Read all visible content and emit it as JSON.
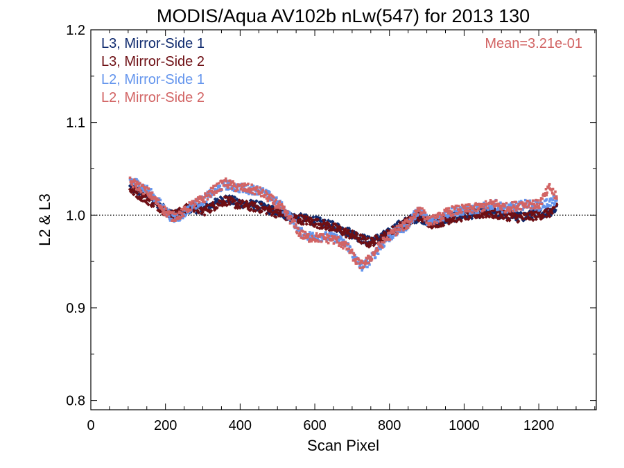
{
  "chart_data": {
    "type": "scatter",
    "title": "MODIS/Aqua AV102b nLw(547) for 2013 130",
    "xlabel": "Scan Pixel",
    "ylabel": "L2 & L3",
    "xlim": [
      0,
      1354
    ],
    "ylim": [
      0.79,
      1.2
    ],
    "x_ticks": [
      0,
      200,
      400,
      600,
      800,
      1000,
      1200
    ],
    "x_tick_labels": [
      "0",
      "200",
      "400",
      "600",
      "800",
      "1000",
      "1200"
    ],
    "y_ticks": [
      0.8,
      0.9,
      1.0,
      1.1,
      1.2
    ],
    "y_tick_labels": [
      "0.8",
      "0.9",
      "1.0",
      "1.1",
      "1.2"
    ],
    "reference_line": {
      "y": 1.0,
      "style": "dotted"
    },
    "annotation": {
      "text": "Mean=3.21e-01",
      "color": "#d26464",
      "placement": "top-right"
    },
    "legend_placement": "top-left",
    "grid": false,
    "series": [
      {
        "name": "L3, Mirror-Side 1",
        "color": "#0f2a6e",
        "marker": "diamond",
        "points": [
          [
            105,
            1.03
          ],
          [
            130,
            1.025
          ],
          [
            155,
            1.02
          ],
          [
            180,
            1.012
          ],
          [
            200,
            1.005
          ],
          [
            220,
            1.0
          ],
          [
            245,
            1.002
          ],
          [
            270,
            1.008
          ],
          [
            300,
            1.006
          ],
          [
            330,
            1.012
          ],
          [
            360,
            1.018
          ],
          [
            390,
            1.014
          ],
          [
            420,
            1.012
          ],
          [
            450,
            1.01
          ],
          [
            480,
            1.006
          ],
          [
            510,
            1.002
          ],
          [
            540,
            0.998
          ],
          [
            570,
            0.996
          ],
          [
            600,
            0.994
          ],
          [
            630,
            0.99
          ],
          [
            660,
            0.987
          ],
          [
            690,
            0.982
          ],
          [
            720,
            0.976
          ],
          [
            745,
            0.972
          ],
          [
            770,
            0.975
          ],
          [
            795,
            0.98
          ],
          [
            820,
            0.988
          ],
          [
            850,
            0.994
          ],
          [
            880,
            0.998
          ],
          [
            910,
            0.992
          ],
          [
            940,
            0.995
          ],
          [
            970,
            0.998
          ],
          [
            1000,
            1.0
          ],
          [
            1030,
            1.002
          ],
          [
            1060,
            1.003
          ],
          [
            1090,
            1.002
          ],
          [
            1120,
            1.0
          ],
          [
            1150,
            0.998
          ],
          [
            1180,
            1.0
          ],
          [
            1210,
            1.002
          ],
          [
            1240,
            1.005
          ],
          [
            1248,
            1.01
          ]
        ]
      },
      {
        "name": "L3, Mirror-Side 2",
        "color": "#6e0f14",
        "marker": "diamond",
        "points": [
          [
            105,
            1.028
          ],
          [
            130,
            1.022
          ],
          [
            155,
            1.016
          ],
          [
            180,
            1.01
          ],
          [
            200,
            1.004
          ],
          [
            220,
            1.0
          ],
          [
            245,
            1.004
          ],
          [
            270,
            1.01
          ],
          [
            300,
            1.004
          ],
          [
            330,
            1.01
          ],
          [
            360,
            1.016
          ],
          [
            390,
            1.012
          ],
          [
            420,
            1.01
          ],
          [
            450,
            1.008
          ],
          [
            480,
            1.005
          ],
          [
            510,
            1.001
          ],
          [
            540,
            0.997
          ],
          [
            570,
            0.995
          ],
          [
            600,
            0.992
          ],
          [
            630,
            0.989
          ],
          [
            660,
            0.985
          ],
          [
            690,
            0.98
          ],
          [
            720,
            0.975
          ],
          [
            745,
            0.97
          ],
          [
            770,
            0.974
          ],
          [
            795,
            0.979
          ],
          [
            820,
            0.986
          ],
          [
            850,
            0.993
          ],
          [
            880,
            0.999
          ],
          [
            910,
            0.991
          ],
          [
            940,
            0.993
          ],
          [
            970,
            0.997
          ],
          [
            1000,
            0.999
          ],
          [
            1030,
            1.001
          ],
          [
            1060,
            1.002
          ],
          [
            1090,
            1.001
          ],
          [
            1120,
            0.999
          ],
          [
            1150,
            0.997
          ],
          [
            1180,
            0.999
          ],
          [
            1210,
            1.001
          ],
          [
            1240,
            1.004
          ],
          [
            1248,
            1.012
          ]
        ]
      },
      {
        "name": "L2, Mirror-Side 1",
        "color": "#6495ed",
        "marker": "square",
        "points": [
          [
            105,
            1.038
          ],
          [
            130,
            1.033
          ],
          [
            155,
            1.026
          ],
          [
            180,
            1.015
          ],
          [
            200,
            1.005
          ],
          [
            220,
            0.996
          ],
          [
            245,
            1.0
          ],
          [
            270,
            1.01
          ],
          [
            300,
            1.016
          ],
          [
            330,
            1.026
          ],
          [
            360,
            1.033
          ],
          [
            390,
            1.03
          ],
          [
            420,
            1.028
          ],
          [
            450,
            1.027
          ],
          [
            480,
            1.02
          ],
          [
            510,
            1.01
          ],
          [
            540,
            0.995
          ],
          [
            560,
            0.982
          ],
          [
            580,
            0.978
          ],
          [
            600,
            0.977
          ],
          [
            630,
            0.977
          ],
          [
            660,
            0.975
          ],
          [
            690,
            0.966
          ],
          [
            710,
            0.952
          ],
          [
            725,
            0.944
          ],
          [
            745,
            0.95
          ],
          [
            770,
            0.963
          ],
          [
            795,
            0.975
          ],
          [
            820,
            0.982
          ],
          [
            850,
            0.99
          ],
          [
            880,
            1.007
          ],
          [
            905,
            0.992
          ],
          [
            930,
            0.996
          ],
          [
            960,
            1.003
          ],
          [
            990,
            1.005
          ],
          [
            1020,
            1.006
          ],
          [
            1050,
            1.008
          ],
          [
            1080,
            1.012
          ],
          [
            1110,
            1.007
          ],
          [
            1140,
            1.009
          ],
          [
            1170,
            1.012
          ],
          [
            1200,
            1.01
          ],
          [
            1230,
            1.014
          ],
          [
            1248,
            1.016
          ]
        ]
      },
      {
        "name": "L2, Mirror-Side 2",
        "color": "#d26464",
        "marker": "square",
        "points": [
          [
            105,
            1.036
          ],
          [
            130,
            1.031
          ],
          [
            155,
            1.024
          ],
          [
            180,
            1.013
          ],
          [
            200,
            1.004
          ],
          [
            220,
            0.998
          ],
          [
            245,
            1.002
          ],
          [
            270,
            1.011
          ],
          [
            300,
            1.017
          ],
          [
            330,
            1.027
          ],
          [
            360,
            1.035
          ],
          [
            390,
            1.03
          ],
          [
            420,
            1.029
          ],
          [
            450,
            1.026
          ],
          [
            480,
            1.018
          ],
          [
            510,
            1.008
          ],
          [
            540,
            0.993
          ],
          [
            560,
            0.98
          ],
          [
            580,
            0.976
          ],
          [
            600,
            0.976
          ],
          [
            630,
            0.975
          ],
          [
            660,
            0.973
          ],
          [
            690,
            0.964
          ],
          [
            710,
            0.951
          ],
          [
            725,
            0.946
          ],
          [
            745,
            0.952
          ],
          [
            770,
            0.965
          ],
          [
            795,
            0.976
          ],
          [
            820,
            0.984
          ],
          [
            850,
            0.991
          ],
          [
            880,
            1.008
          ],
          [
            905,
            0.993
          ],
          [
            930,
            0.997
          ],
          [
            960,
            1.004
          ],
          [
            990,
            1.006
          ],
          [
            1020,
            1.007
          ],
          [
            1050,
            1.009
          ],
          [
            1080,
            1.013
          ],
          [
            1110,
            1.008
          ],
          [
            1140,
            1.01
          ],
          [
            1170,
            1.013
          ],
          [
            1200,
            1.011
          ],
          [
            1230,
            1.03
          ],
          [
            1248,
            1.018
          ]
        ]
      }
    ]
  }
}
